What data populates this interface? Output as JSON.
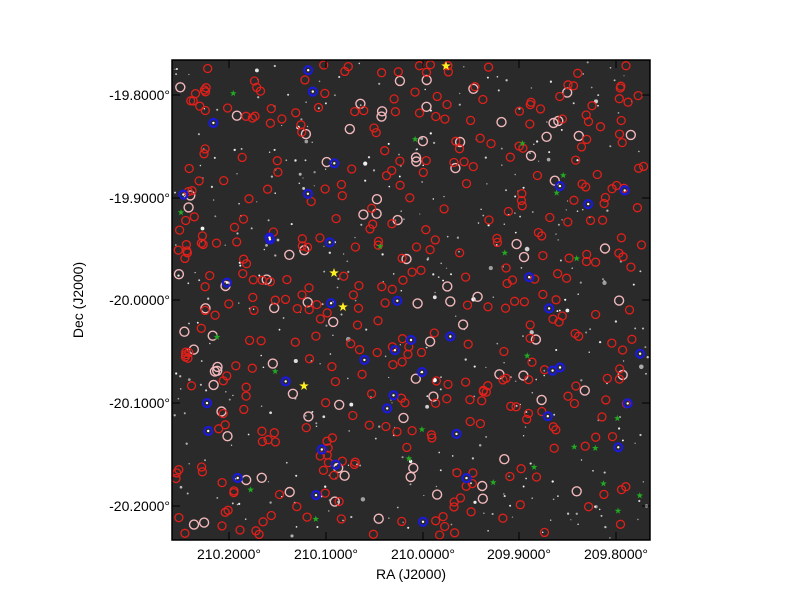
{
  "axes": {
    "xlabel": "RA (J2000)",
    "ylabel": "Dec (J2000)",
    "x_ticks": [
      "210.2000°",
      "210.1000°",
      "210.0000°",
      "209.9000°",
      "209.8000°"
    ],
    "y_ticks": [
      "-19.8000°",
      "-19.9000°",
      "-20.0000°",
      "-20.1000°",
      "-20.2000°"
    ]
  },
  "colors": {
    "background": "#2a2a2a",
    "catalog_red": "#e0201a",
    "catalog_pink": "#f2b8bc",
    "marker_blue": "#1a1ad8",
    "marker_green": "#22aa22",
    "marker_yellow": "#ffee22"
  }
}
